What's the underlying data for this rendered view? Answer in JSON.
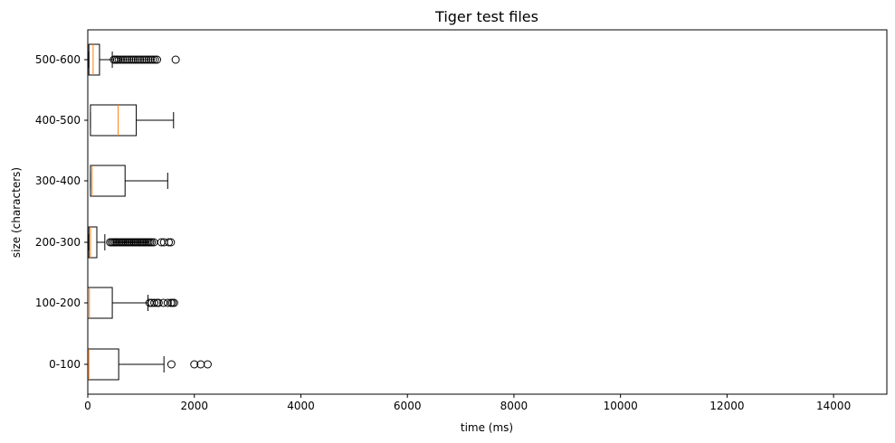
{
  "chart_data": {
    "type": "boxplot",
    "orientation": "horizontal",
    "title": "Tiger test files",
    "xlabel": "time (ms)",
    "ylabel": "size (characters)",
    "xlim": [
      0,
      15000
    ],
    "x_ticks": [
      "0",
      "2000",
      "4000",
      "6000",
      "8000",
      "10000",
      "12000",
      "14000"
    ],
    "x_tick_values": [
      0,
      2000,
      4000,
      6000,
      8000,
      10000,
      12000,
      14000
    ],
    "grid": false,
    "box_color": "#000000",
    "median_color": "#ff7f0e",
    "categories": [
      "0-100",
      "100-200",
      "200-300",
      "300-400",
      "400-500",
      "500-600"
    ],
    "boxes": [
      {
        "label": "0-100",
        "whisker_low": 0,
        "q1": 0,
        "median": 20,
        "q3": 580,
        "whisker_high": 1430,
        "fliers": [
          1570,
          2000,
          2120,
          2250
        ]
      },
      {
        "label": "100-200",
        "whisker_low": 0,
        "q1": 0,
        "median": 30,
        "q3": 460,
        "whisker_high": 1130,
        "fliers": [
          1160,
          1200,
          1250,
          1300,
          1330,
          1420,
          1500,
          1560,
          1590,
          1620
        ]
      },
      {
        "label": "200-300",
        "whisker_low": 20,
        "q1": 20,
        "median": 50,
        "q3": 170,
        "whisker_high": 320,
        "fliers": [
          420,
          450,
          480,
          510,
          540,
          570,
          600,
          630,
          660,
          690,
          720,
          750,
          780,
          810,
          840,
          870,
          900,
          930,
          960,
          990,
          1020,
          1050,
          1080,
          1110,
          1140,
          1170,
          1200,
          1240,
          1380,
          1430,
          1520,
          1560
        ]
      },
      {
        "label": "300-400",
        "whisker_low": 50,
        "q1": 50,
        "median": 80,
        "q3": 700,
        "whisker_high": 1500,
        "fliers": []
      },
      {
        "label": "400-500",
        "whisker_low": 50,
        "q1": 50,
        "median": 570,
        "q3": 910,
        "whisker_high": 1610,
        "fliers": []
      },
      {
        "label": "500-600",
        "whisker_low": 20,
        "q1": 20,
        "median": 100,
        "q3": 220,
        "whisker_high": 460,
        "fliers": [
          490,
          520,
          550,
          580,
          620,
          660,
          700,
          740,
          780,
          820,
          860,
          900,
          940,
          980,
          1020,
          1060,
          1100,
          1140,
          1180,
          1220,
          1260,
          1300,
          1650
        ]
      }
    ]
  }
}
